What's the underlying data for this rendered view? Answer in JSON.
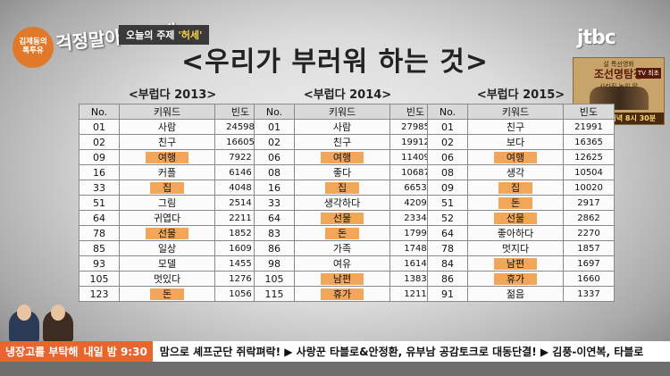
{
  "show": {
    "badge_line1": "김제동의",
    "badge_line2": "톡투유",
    "logo": "걱정말아요 그대",
    "topic_label": "오늘의 주제",
    "topic_value": "'허세'"
  },
  "channel": {
    "logo": "jtbc"
  },
  "promo": {
    "subtitle": "설 특선영화",
    "title": "조선명탐정",
    "title2": "사라진 놉의 딸",
    "tv_badge": "TV 최초",
    "time": "2/7(일) 저녁 8시 30분"
  },
  "board": {
    "title": "<우리가 부러워 하는 것>"
  },
  "tables": [
    {
      "title": "<부럽다 2013>",
      "headers": [
        "No.",
        "키워드",
        "빈도"
      ],
      "rows": [
        {
          "no": "01",
          "kw": "사람",
          "freq": "24598",
          "hl": false
        },
        {
          "no": "02",
          "kw": "친구",
          "freq": "16605",
          "hl": false
        },
        {
          "no": "09",
          "kw": "여행",
          "freq": "7922",
          "hl": true
        },
        {
          "no": "16",
          "kw": "커플",
          "freq": "6146",
          "hl": false
        },
        {
          "no": "33",
          "kw": "집",
          "freq": "4048",
          "hl": true
        },
        {
          "no": "51",
          "kw": "그림",
          "freq": "2514",
          "hl": false
        },
        {
          "no": "64",
          "kw": "귀엽다",
          "freq": "2211",
          "hl": false
        },
        {
          "no": "78",
          "kw": "선물",
          "freq": "1852",
          "hl": true
        },
        {
          "no": "85",
          "kw": "일상",
          "freq": "1609",
          "hl": false
        },
        {
          "no": "93",
          "kw": "모델",
          "freq": "1455",
          "hl": false
        },
        {
          "no": "105",
          "kw": "멋있다",
          "freq": "1276",
          "hl": false
        },
        {
          "no": "123",
          "kw": "돈",
          "freq": "1056",
          "hl": true
        }
      ]
    },
    {
      "title": "<부럽다 2014>",
      "headers": [
        "No.",
        "키워드",
        "빈도"
      ],
      "rows": [
        {
          "no": "01",
          "kw": "사람",
          "freq": "27985",
          "hl": false
        },
        {
          "no": "02",
          "kw": "친구",
          "freq": "19912",
          "hl": false
        },
        {
          "no": "06",
          "kw": "여행",
          "freq": "11409",
          "hl": true
        },
        {
          "no": "08",
          "kw": "좋다",
          "freq": "10687",
          "hl": false
        },
        {
          "no": "16",
          "kw": "집",
          "freq": "6653",
          "hl": true
        },
        {
          "no": "33",
          "kw": "생각하다",
          "freq": "4209",
          "hl": false
        },
        {
          "no": "64",
          "kw": "선물",
          "freq": "2334",
          "hl": true
        },
        {
          "no": "83",
          "kw": "돈",
          "freq": "1799",
          "hl": true
        },
        {
          "no": "86",
          "kw": "가족",
          "freq": "1748",
          "hl": false
        },
        {
          "no": "98",
          "kw": "여유",
          "freq": "1614",
          "hl": false
        },
        {
          "no": "105",
          "kw": "남편",
          "freq": "1383",
          "hl": true
        },
        {
          "no": "115",
          "kw": "휴가",
          "freq": "1211",
          "hl": true
        }
      ]
    },
    {
      "title": "<부럽다 2015>",
      "headers": [
        "No.",
        "키워드",
        "빈도"
      ],
      "rows": [
        {
          "no": "01",
          "kw": "친구",
          "freq": "21991",
          "hl": false
        },
        {
          "no": "02",
          "kw": "보다",
          "freq": "16365",
          "hl": false
        },
        {
          "no": "06",
          "kw": "여행",
          "freq": "12625",
          "hl": true
        },
        {
          "no": "08",
          "kw": "생각",
          "freq": "10504",
          "hl": false
        },
        {
          "no": "09",
          "kw": "집",
          "freq": "10020",
          "hl": true
        },
        {
          "no": "51",
          "kw": "돈",
          "freq": "2917",
          "hl": true
        },
        {
          "no": "52",
          "kw": "선물",
          "freq": "2862",
          "hl": true
        },
        {
          "no": "64",
          "kw": "좋아하다",
          "freq": "2270",
          "hl": false
        },
        {
          "no": "78",
          "kw": "멋지다",
          "freq": "1857",
          "hl": false
        },
        {
          "no": "84",
          "kw": "남편",
          "freq": "1697",
          "hl": true
        },
        {
          "no": "86",
          "kw": "휴가",
          "freq": "1660",
          "hl": true
        },
        {
          "no": "91",
          "kw": "젊음",
          "freq": "1337",
          "hl": false
        }
      ]
    }
  ],
  "ticker": {
    "program": "냉장고를 부탁해",
    "program_time": "내일 밤 9:30",
    "news": "맘으로 셰프군단 쥐락펴락! ▶ 사랑꾼 타블로&안정환, 유부남 공감토크로 대동단결! ▶ 김풍-이연복, 타블로"
  },
  "colors": {
    "highlight": "#f2a65a",
    "ticker_accent": "#e8652d"
  }
}
